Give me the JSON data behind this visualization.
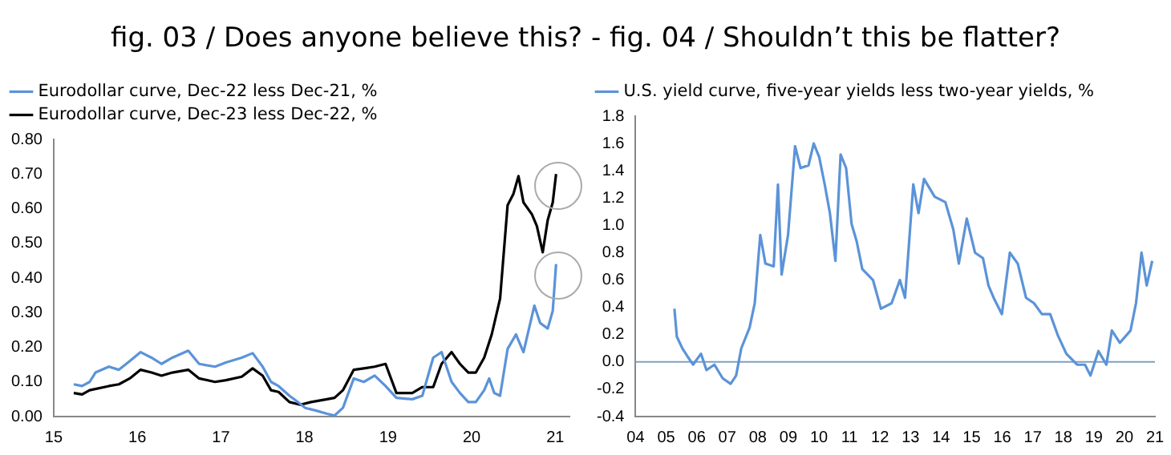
{
  "chart_data": [
    {
      "type": "line",
      "title": "fig. 03 / Does anyone believe this? - fig. 04 / Shouldn’t this be flatter?",
      "legend": "top left",
      "marker": "none",
      "line_style": "solid",
      "xlim": [
        2015,
        2021.17
      ],
      "xticks": [
        {
          "value": 2015,
          "label": "15"
        },
        {
          "value": 2016,
          "label": "16"
        },
        {
          "value": 2017,
          "label": "17"
        },
        {
          "value": 2018,
          "label": "18"
        },
        {
          "value": 2019,
          "label": "19"
        },
        {
          "value": 2020,
          "label": "20"
        },
        {
          "value": 2021,
          "label": "21"
        }
      ],
      "ylim": [
        0,
        0.8
      ],
      "yticks": [
        {
          "value": 0,
          "label": "0.00"
        },
        {
          "value": 0.1,
          "label": "0.10"
        },
        {
          "value": 0.2,
          "label": "0.20"
        },
        {
          "value": 0.3,
          "label": "0.30"
        },
        {
          "value": 0.4,
          "label": "0.40"
        },
        {
          "value": 0.5,
          "label": "0.50"
        },
        {
          "value": 0.6,
          "label": "0.60"
        },
        {
          "value": 0.7,
          "label": "0.70"
        },
        {
          "value": 0.8,
          "label": "0.80"
        }
      ],
      "series": [
        {
          "name": "Eurodollar curve, Dec-22 less Dec-21, %",
          "color": "#5b93d8",
          "x": [
            2015.24,
            2015.34,
            2015.43,
            2015.5,
            2015.66,
            2015.78,
            2015.91,
            2016.04,
            2016.17,
            2016.29,
            2016.42,
            2016.61,
            2016.74,
            2016.93,
            2017.06,
            2017.25,
            2017.38,
            2017.5,
            2017.6,
            2017.69,
            2017.82,
            2017.92,
            2018.01,
            2018.14,
            2018.27,
            2018.36,
            2018.46,
            2018.59,
            2018.71,
            2018.84,
            2018.97,
            2019.1,
            2019.29,
            2019.41,
            2019.54,
            2019.64,
            2019.76,
            2019.86,
            2019.96,
            2020.05,
            2020.15,
            2020.21,
            2020.27,
            2020.34,
            2020.43,
            2020.53,
            2020.62,
            2020.75,
            2020.82,
            2020.91,
            2020.97,
            2021.01
          ],
          "values": [
            0.093,
            0.088,
            0.1,
            0.127,
            0.144,
            0.135,
            0.16,
            0.186,
            0.17,
            0.152,
            0.17,
            0.19,
            0.152,
            0.144,
            0.156,
            0.17,
            0.183,
            0.144,
            0.1,
            0.088,
            0.06,
            0.042,
            0.025,
            0.017,
            0.008,
            0.003,
            0.025,
            0.11,
            0.1,
            0.118,
            0.088,
            0.054,
            0.05,
            0.06,
            0.17,
            0.186,
            0.1,
            0.068,
            0.042,
            0.042,
            0.076,
            0.11,
            0.068,
            0.06,
            0.195,
            0.237,
            0.186,
            0.32,
            0.27,
            0.254,
            0.305,
            0.44
          ]
        },
        {
          "name": "Eurodollar curve, Dec-23 less Dec-22, %",
          "color": "#000000",
          "x": [
            2015.24,
            2015.34,
            2015.43,
            2015.66,
            2015.78,
            2015.91,
            2016.04,
            2016.17,
            2016.29,
            2016.42,
            2016.61,
            2016.74,
            2016.93,
            2017.06,
            2017.25,
            2017.38,
            2017.5,
            2017.6,
            2017.69,
            2017.82,
            2017.95,
            2018.08,
            2018.27,
            2018.36,
            2018.46,
            2018.59,
            2018.71,
            2018.84,
            2018.97,
            2019.1,
            2019.29,
            2019.41,
            2019.54,
            2019.64,
            2019.76,
            2019.86,
            2019.96,
            2020.05,
            2020.15,
            2020.24,
            2020.34,
            2020.43,
            2020.5,
            2020.56,
            2020.62,
            2020.72,
            2020.78,
            2020.85,
            2020.91,
            2020.97,
            2021.01
          ],
          "values": [
            0.068,
            0.064,
            0.076,
            0.088,
            0.093,
            0.11,
            0.135,
            0.127,
            0.118,
            0.127,
            0.135,
            0.11,
            0.1,
            0.105,
            0.115,
            0.139,
            0.118,
            0.076,
            0.071,
            0.042,
            0.034,
            0.042,
            0.05,
            0.054,
            0.076,
            0.135,
            0.139,
            0.144,
            0.152,
            0.068,
            0.068,
            0.085,
            0.085,
            0.152,
            0.186,
            0.152,
            0.127,
            0.127,
            0.17,
            0.237,
            0.34,
            0.61,
            0.643,
            0.694,
            0.618,
            0.584,
            0.55,
            0.474,
            0.567,
            0.618,
            0.7
          ]
        }
      ]
    },
    {
      "type": "line",
      "legend": "top left",
      "marker": "none",
      "line_style": "solid",
      "xlim": [
        2004,
        2021
      ],
      "xticks": [
        {
          "value": 2004,
          "label": "04"
        },
        {
          "value": 2005,
          "label": "05"
        },
        {
          "value": 2006,
          "label": "06"
        },
        {
          "value": 2007,
          "label": "07"
        },
        {
          "value": 2008,
          "label": "08"
        },
        {
          "value": 2009,
          "label": "09"
        },
        {
          "value": 2010,
          "label": "10"
        },
        {
          "value": 2011,
          "label": "11"
        },
        {
          "value": 2012,
          "label": "12"
        },
        {
          "value": 2013,
          "label": "13"
        },
        {
          "value": 2014,
          "label": "14"
        },
        {
          "value": 2015,
          "label": "15"
        },
        {
          "value": 2016,
          "label": "16"
        },
        {
          "value": 2017,
          "label": "17"
        },
        {
          "value": 2018,
          "label": "18"
        },
        {
          "value": 2019,
          "label": "19"
        },
        {
          "value": 2020,
          "label": "20"
        },
        {
          "value": 2021,
          "label": "21"
        }
      ],
      "ylim": [
        -0.4,
        1.8
      ],
      "yticks": [
        -0.4,
        -0.2,
        {
          "value": 0,
          "label": "0.0"
        },
        0.2,
        0.4,
        0.6,
        0.8,
        {
          "value": 1,
          "label": "1.0"
        },
        1.2,
        1.4,
        1.6,
        1.8
      ],
      "ref_lines": [
        {
          "axis": "y",
          "value": 0,
          "color": "#7f9fbf"
        }
      ],
      "series": [
        {
          "name": "U.S. yield curve, five-year yields less two-year yields, %",
          "color": "#5b93d8",
          "x": [
            2005.27,
            2005.35,
            2005.53,
            2005.7,
            2005.88,
            2006.14,
            2006.32,
            2006.58,
            2006.85,
            2007.11,
            2007.29,
            2007.46,
            2007.73,
            2007.9,
            2008.08,
            2008.25,
            2008.52,
            2008.66,
            2008.78,
            2008.99,
            2009.22,
            2009.4,
            2009.66,
            2009.83,
            2010.01,
            2010.19,
            2010.36,
            2010.54,
            2010.71,
            2010.89,
            2011.07,
            2011.24,
            2011.42,
            2011.77,
            2012.03,
            2012.38,
            2012.65,
            2012.82,
            2013.09,
            2013.26,
            2013.44,
            2013.79,
            2014.14,
            2014.4,
            2014.58,
            2014.84,
            2015.11,
            2015.37,
            2015.55,
            2015.72,
            2015.99,
            2016.25,
            2016.51,
            2016.78,
            2017.04,
            2017.3,
            2017.57,
            2017.83,
            2018.1,
            2018.45,
            2018.71,
            2018.89,
            2019.15,
            2019.41,
            2019.59,
            2019.85,
            2020.2,
            2020.38,
            2020.56,
            2020.73,
            2020.91
          ],
          "values": [
            0.39,
            0.185,
            0.1,
            0.04,
            -0.02,
            0.06,
            -0.06,
            -0.02,
            -0.12,
            -0.16,
            -0.1,
            0.1,
            0.25,
            0.43,
            0.93,
            0.72,
            0.7,
            1.3,
            0.64,
            0.93,
            1.58,
            1.42,
            1.44,
            1.6,
            1.5,
            1.3,
            1.09,
            0.74,
            1.52,
            1.42,
            1.01,
            0.88,
            0.68,
            0.6,
            0.39,
            0.43,
            0.6,
            0.47,
            1.3,
            1.09,
            1.34,
            1.21,
            1.17,
            0.97,
            0.72,
            1.05,
            0.8,
            0.76,
            0.56,
            0.47,
            0.35,
            0.8,
            0.72,
            0.47,
            0.43,
            0.35,
            0.35,
            0.19,
            0.06,
            -0.02,
            -0.02,
            -0.1,
            0.08,
            -0.02,
            0.23,
            0.14,
            0.23,
            0.43,
            0.8,
            0.56,
            0.74
          ]
        }
      ]
    }
  ]
}
